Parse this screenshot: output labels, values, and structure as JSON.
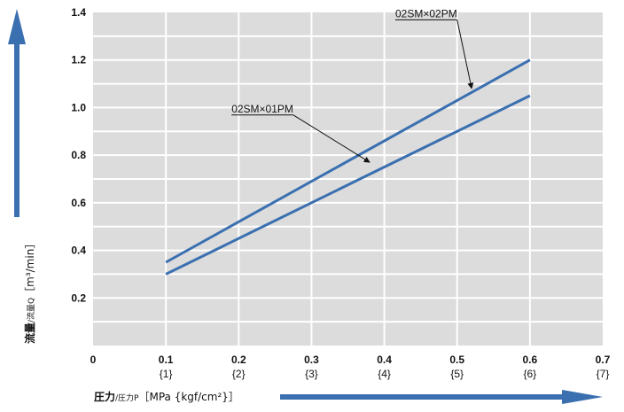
{
  "chart_data": {
    "type": "line",
    "title": "",
    "xlim": [
      0,
      0.7
    ],
    "ylim": [
      0,
      1.4
    ],
    "x_ticks": [
      "0",
      "0.1",
      "0.2",
      "0.3",
      "0.4",
      "0.5",
      "0.6",
      "0.7"
    ],
    "x_ticks_sub": [
      "{1}",
      "{2}",
      "{3}",
      "{4}",
      "{5}",
      "{6}",
      "{7}"
    ],
    "y_ticks": [
      "0.2",
      "0.4",
      "0.6",
      "0.8",
      "1.0",
      "1.2",
      "1.4"
    ],
    "xlabel": {
      "main": "圧力",
      "sub": "/圧力P",
      "unit": "［MPa {kgf/cm²}］"
    },
    "ylabel": {
      "main": "流量",
      "sub": "/流量Q",
      "unit": "［m³/min］"
    },
    "grid": true,
    "series": [
      {
        "name": "02SM×02PM",
        "x": [
          0.1,
          0.6
        ],
        "y": [
          0.35,
          1.2
        ],
        "color": "#3a6fb0",
        "label_at": [
          0.5,
          1.38
        ],
        "arrow_to": [
          0.52,
          1.08
        ]
      },
      {
        "name": "02SM×01PM",
        "x": [
          0.1,
          0.6
        ],
        "y": [
          0.3,
          1.05
        ],
        "color": "#3a6fb0",
        "label_at": [
          0.275,
          0.98
        ],
        "arrow_to": [
          0.38,
          0.77
        ]
      }
    ],
    "colors": {
      "plot_bg": "#dcdcdc",
      "grid": "#ffffff",
      "line": "#3a6fb0",
      "arrow": "#3a6fb0"
    }
  }
}
